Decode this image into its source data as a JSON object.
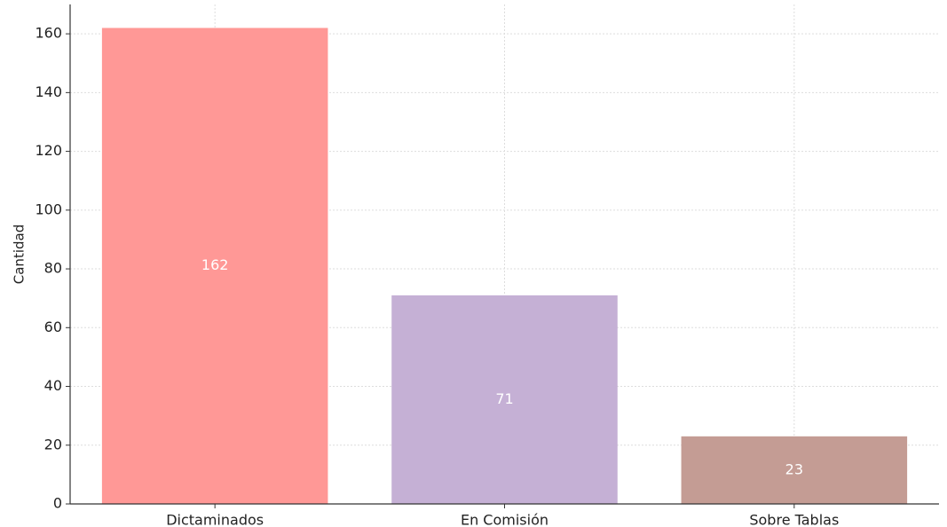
{
  "chart_data": {
    "type": "bar",
    "title": "",
    "xlabel": "",
    "ylabel": "Cantidad",
    "categories": [
      "Dictaminados",
      "En Comisión",
      "Sobre Tablas"
    ],
    "values": [
      162,
      71,
      23
    ],
    "value_labels": [
      "162",
      "71",
      "23"
    ],
    "colors": [
      "#ff9896",
      "#c5b0d5",
      "#c49c94"
    ],
    "ylim": [
      0,
      170
    ],
    "yticks": [
      0,
      20,
      40,
      60,
      80,
      100,
      120,
      140,
      160
    ],
    "grid": true,
    "value_label_color": "#ffffff",
    "grid_color": "#dddddd",
    "axis_color": "#333333"
  }
}
